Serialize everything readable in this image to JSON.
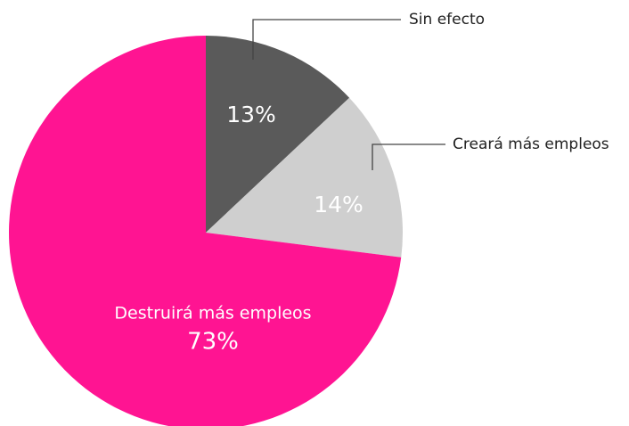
{
  "chart_data": {
    "type": "pie",
    "start_angle_deg": 0,
    "direction": "clockwise",
    "slices": [
      {
        "label": "Sin efecto",
        "value": 13,
        "value_label": "13%",
        "color": "#5a5a5a",
        "text_color": "#ffffff",
        "label_style": "callout"
      },
      {
        "label": "Creará más empleos",
        "value": 14,
        "value_label": "14%",
        "color": "#cfcfcf",
        "text_color": "#ffffff",
        "label_style": "callout"
      },
      {
        "label": "Destruirá más empleos",
        "value": 73,
        "value_label": "73%",
        "color": "#ff1492",
        "text_color": "#ffffff",
        "label_style": "inside"
      }
    ]
  }
}
